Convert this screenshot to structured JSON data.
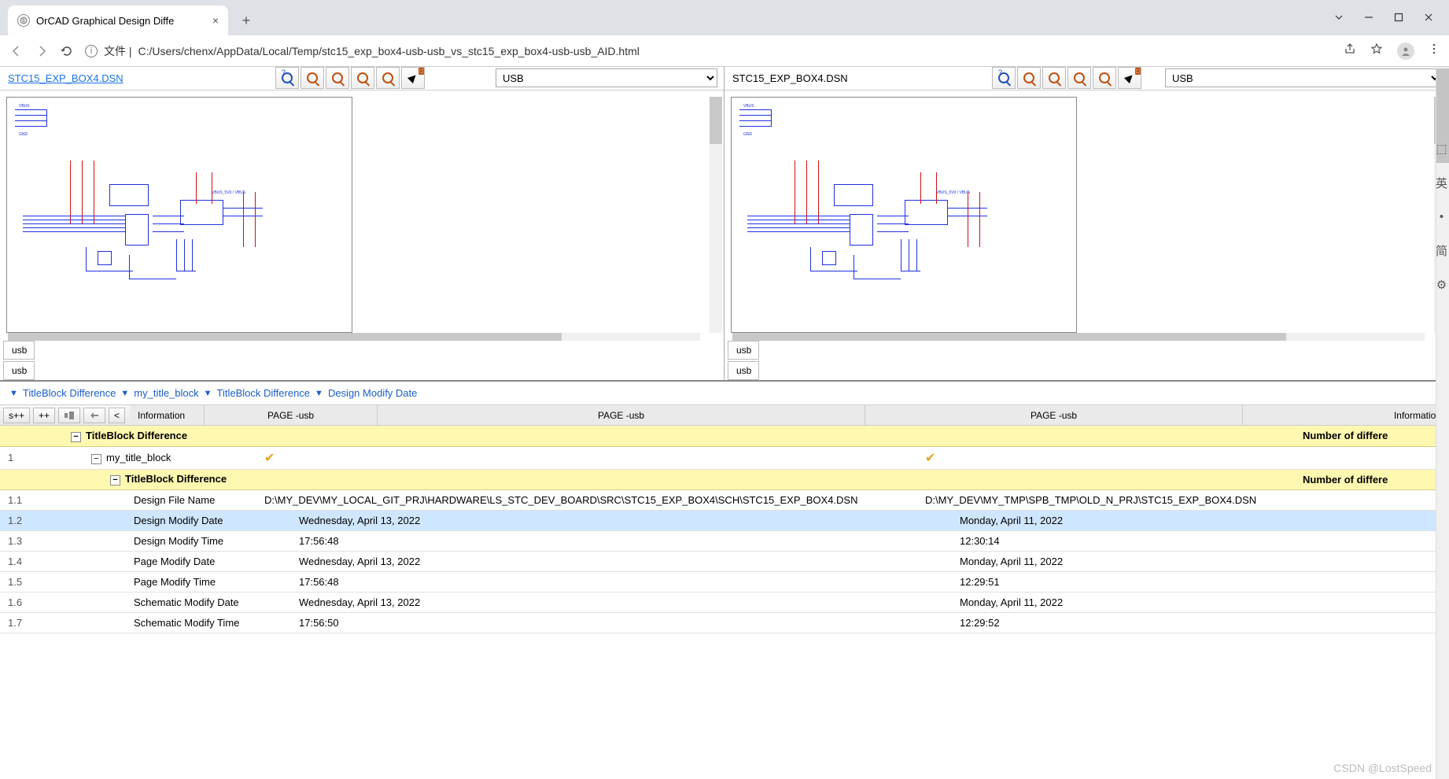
{
  "browser": {
    "tab_title": "OrCAD Graphical Design Diffe",
    "url_prefix": "文件 |",
    "url": "C:/Users/chenx/AppData/Local/Temp/stc15_exp_box4-usb-usb_vs_stc15_exp_box4-usb-usb_AID.html"
  },
  "panes": {
    "left": {
      "title": "STC15_EXP_BOX4.DSN",
      "dropdown": "USB",
      "tab": "usb"
    },
    "right": {
      "title": "STC15_EXP_BOX4.DSN",
      "dropdown": "USB",
      "tab": "usb"
    }
  },
  "breadcrumb": {
    "items": [
      "TitleBlock Difference",
      "my_title_block",
      "TitleBlock Difference",
      "Design Modify Date"
    ]
  },
  "table": {
    "headers": {
      "info": "Information",
      "p1": "PAGE -usb",
      "p2": "PAGE -usb",
      "p3": "PAGE -usb",
      "info2": "Information"
    },
    "section1": {
      "label": "TitleBlock Difference",
      "info": "Number of differe"
    },
    "row_title": {
      "num": "1",
      "label": "my_title_block"
    },
    "section2": {
      "label": "TitleBlock Difference",
      "info": "Number of differe"
    },
    "rows": [
      {
        "num": "1.1",
        "label": "Design File Name",
        "v1": "D:\\MY_DEV\\MY_LOCAL_GIT_PRJ\\HARDWARE\\LS_STC_DEV_BOARD\\SRC\\STC15_EXP_BOX4\\SCH\\STC15_EXP_BOX4.DSN",
        "v2": "D:\\MY_DEV\\MY_TMP\\SPB_TMP\\OLD_N_PRJ\\STC15_EXP_BOX4.DSN",
        "hl": false,
        "pad": false
      },
      {
        "num": "1.2",
        "label": "Design Modify Date",
        "v1": "Wednesday, April 13, 2022",
        "v2": "Monday, April 11, 2022",
        "hl": true,
        "pad": true
      },
      {
        "num": "1.3",
        "label": "Design Modify Time",
        "v1": "17:56:48",
        "v2": "12:30:14",
        "hl": false,
        "pad": true
      },
      {
        "num": "1.4",
        "label": "Page Modify Date",
        "v1": "Wednesday, April 13, 2022",
        "v2": "Monday, April 11, 2022",
        "hl": false,
        "pad": true
      },
      {
        "num": "1.5",
        "label": "Page Modify Time",
        "v1": "17:56:48",
        "v2": "12:29:51",
        "hl": false,
        "pad": true
      },
      {
        "num": "1.6",
        "label": "Schematic Modify Date",
        "v1": "Wednesday, April 13, 2022",
        "v2": "Monday, April 11, 2022",
        "hl": false,
        "pad": true
      },
      {
        "num": "1.7",
        "label": "Schematic Modify Time",
        "v1": "17:56:50",
        "v2": "12:29:52",
        "hl": false,
        "pad": true
      }
    ]
  },
  "watermark": "CSDN @LostSpeed",
  "toolbar_buttons": {
    "b1": "s++",
    "b2": "++",
    "b3": "<"
  },
  "colors": {
    "section_bg": "#fff8b0",
    "highlight_bg": "#cfe6ff",
    "link": "#1a5ec8",
    "wire_blue": "#2030e0",
    "wire_red": "#d01010"
  }
}
